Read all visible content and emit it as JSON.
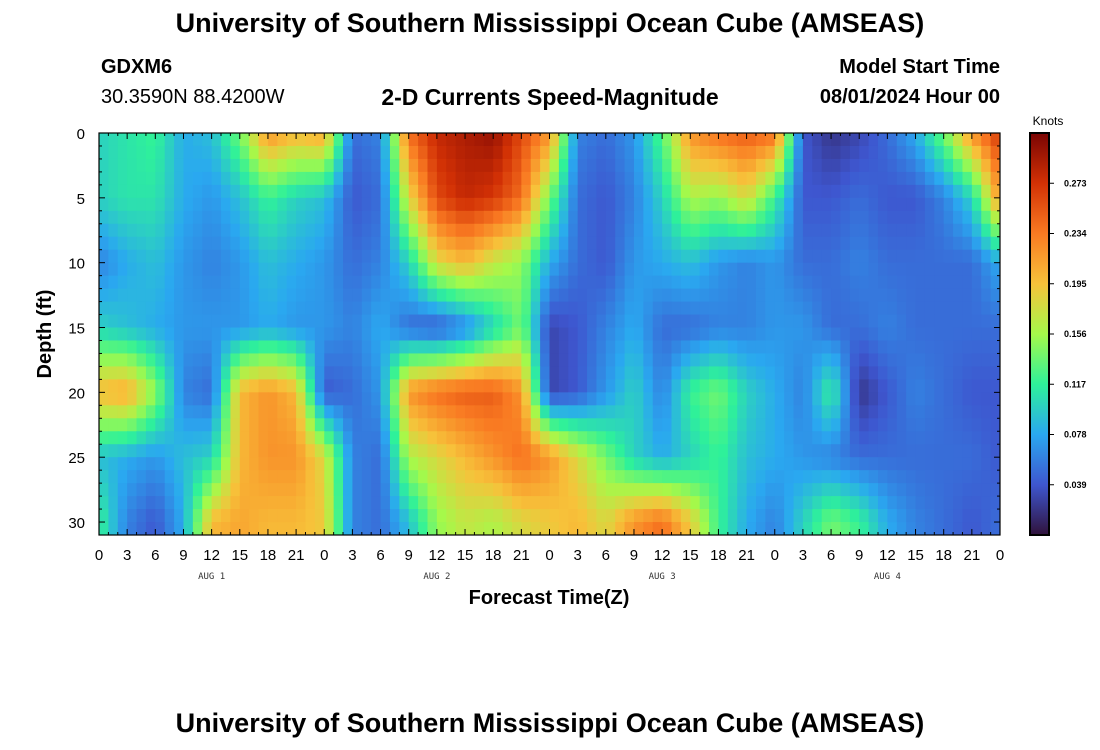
{
  "header": {
    "title": "University of Southern Mississippi Ocean Cube (AMSEAS)",
    "station": "GDXM6",
    "location": "30.3590N  88.4200W",
    "model_start_label": "Model Start Time",
    "model_start_value": "08/01/2024 Hour 00",
    "footer_title": "University of Southern Mississippi Ocean Cube (AMSEAS)"
  },
  "chart_data": {
    "type": "heatmap",
    "title": "2-D Currents Speed-Magnitude",
    "xlabel": "Forecast Time(Z)",
    "ylabel": "Depth (ft)",
    "x_range_hours": [
      0,
      96
    ],
    "x_tick_labels": [
      "0",
      "3",
      "6",
      "9",
      "12",
      "15",
      "18",
      "21",
      "0",
      "3",
      "6",
      "9",
      "12",
      "15",
      "18",
      "21",
      "0",
      "3",
      "6",
      "9",
      "12",
      "15",
      "18",
      "21",
      "0",
      "3",
      "6",
      "9",
      "12",
      "15",
      "18",
      "21",
      "0"
    ],
    "day_labels": [
      {
        "label": "AUG 1",
        "hour": 12
      },
      {
        "label": "AUG 2",
        "hour": 36
      },
      {
        "label": "AUG 3",
        "hour": 60
      },
      {
        "label": "AUG 4",
        "hour": 84
      }
    ],
    "y_ticks": [
      0,
      5,
      10,
      15,
      20,
      25,
      30
    ],
    "y_range_ft": [
      0,
      31
    ],
    "colorbar": {
      "unit": "Knots",
      "range": [
        0.0,
        0.312
      ],
      "ticks": [
        "0.273",
        "0.234",
        "0.195",
        "0.156",
        "0.117",
        "0.078",
        "0.039"
      ],
      "colors": [
        "#30123b",
        "#3e56cf",
        "#2aa8f0",
        "#2ef19a",
        "#a5f94a",
        "#f7c23a",
        "#f97a22",
        "#d23105",
        "#7a0403"
      ]
    },
    "depths_ft": [
      0,
      5,
      10,
      15,
      20,
      25,
      30
    ],
    "hours": [
      0,
      3,
      6,
      9,
      12,
      15,
      18,
      21,
      24,
      27,
      30,
      33,
      36,
      39,
      42,
      45,
      48,
      51,
      54,
      57,
      60,
      63,
      66,
      69,
      72,
      75,
      78,
      81,
      84,
      87,
      90,
      93,
      96
    ],
    "values": [
      [
        0.1,
        0.11,
        0.12,
        0.08,
        0.09,
        0.14,
        0.22,
        0.2,
        0.21,
        0.05,
        0.06,
        0.24,
        0.28,
        0.29,
        0.3,
        0.26,
        0.22,
        0.06,
        0.05,
        0.07,
        0.13,
        0.22,
        0.24,
        0.25,
        0.24,
        0.04,
        0.02,
        0.03,
        0.05,
        0.08,
        0.14,
        0.22,
        0.27
      ],
      [
        0.1,
        0.11,
        0.11,
        0.08,
        0.07,
        0.09,
        0.12,
        0.1,
        0.09,
        0.04,
        0.05,
        0.18,
        0.26,
        0.28,
        0.27,
        0.24,
        0.14,
        0.05,
        0.04,
        0.06,
        0.1,
        0.16,
        0.15,
        0.18,
        0.12,
        0.04,
        0.04,
        0.05,
        0.04,
        0.04,
        0.06,
        0.1,
        0.22
      ],
      [
        0.06,
        0.08,
        0.09,
        0.07,
        0.06,
        0.07,
        0.09,
        0.08,
        0.07,
        0.05,
        0.06,
        0.1,
        0.18,
        0.2,
        0.17,
        0.15,
        0.08,
        0.05,
        0.04,
        0.07,
        0.08,
        0.09,
        0.07,
        0.06,
        0.07,
        0.05,
        0.05,
        0.06,
        0.05,
        0.05,
        0.05,
        0.05,
        0.08
      ],
      [
        0.1,
        0.09,
        0.08,
        0.07,
        0.07,
        0.07,
        0.08,
        0.07,
        0.07,
        0.06,
        0.08,
        0.05,
        0.04,
        0.06,
        0.1,
        0.14,
        0.03,
        0.04,
        0.06,
        0.08,
        0.05,
        0.05,
        0.06,
        0.06,
        0.07,
        0.07,
        0.05,
        0.05,
        0.06,
        0.05,
        0.05,
        0.05,
        0.05
      ],
      [
        0.2,
        0.21,
        0.15,
        0.06,
        0.05,
        0.2,
        0.22,
        0.2,
        0.04,
        0.05,
        0.07,
        0.22,
        0.24,
        0.25,
        0.25,
        0.22,
        0.03,
        0.04,
        0.07,
        0.1,
        0.06,
        0.12,
        0.14,
        0.1,
        0.08,
        0.06,
        0.12,
        0.02,
        0.04,
        0.06,
        0.05,
        0.04,
        0.04
      ],
      [
        0.09,
        0.08,
        0.07,
        0.09,
        0.1,
        0.2,
        0.22,
        0.22,
        0.18,
        0.06,
        0.05,
        0.16,
        0.18,
        0.2,
        0.22,
        0.24,
        0.22,
        0.18,
        0.14,
        0.1,
        0.08,
        0.1,
        0.12,
        0.09,
        0.08,
        0.07,
        0.06,
        0.05,
        0.05,
        0.05,
        0.05,
        0.05,
        0.04
      ],
      [
        0.12,
        0.06,
        0.04,
        0.08,
        0.2,
        0.21,
        0.2,
        0.2,
        0.19,
        0.06,
        0.05,
        0.09,
        0.15,
        0.17,
        0.16,
        0.18,
        0.19,
        0.2,
        0.18,
        0.22,
        0.24,
        0.19,
        0.12,
        0.08,
        0.06,
        0.1,
        0.14,
        0.12,
        0.08,
        0.06,
        0.05,
        0.04,
        0.05
      ]
    ]
  }
}
